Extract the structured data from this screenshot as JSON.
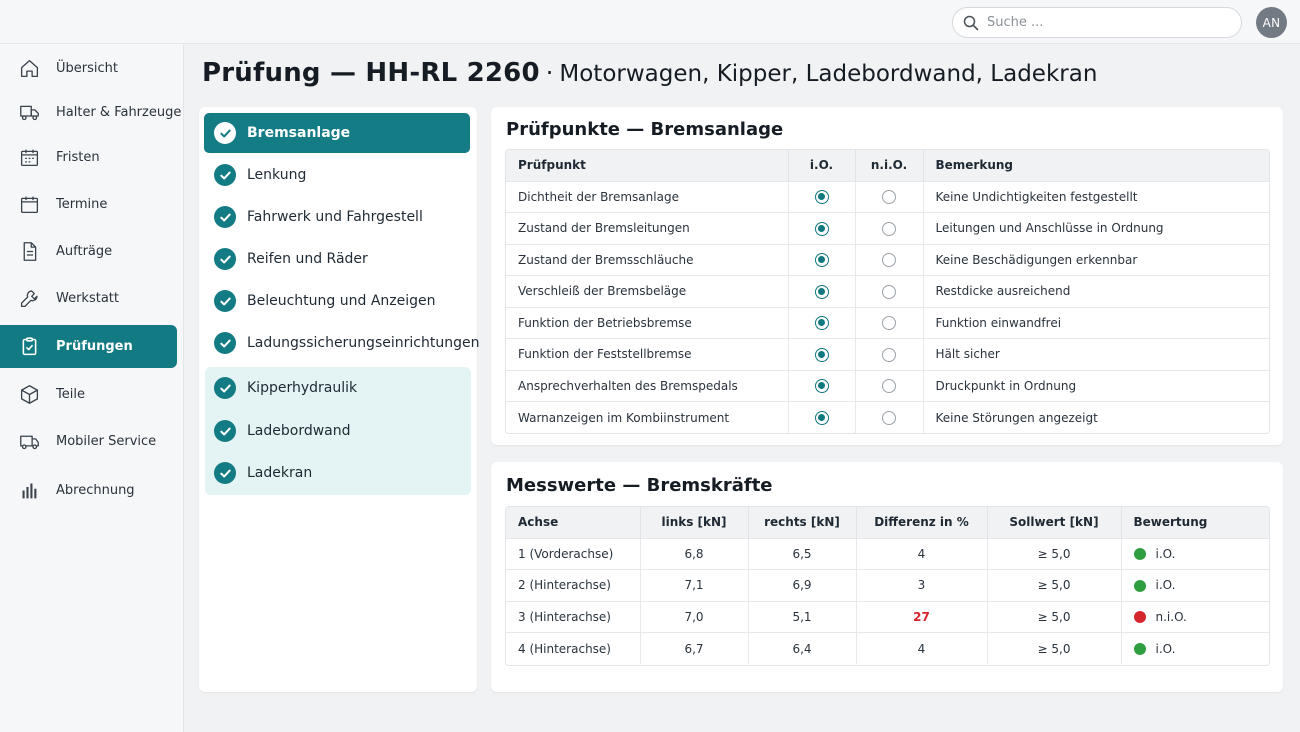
{
  "search": {
    "placeholder": "Suche ..."
  },
  "user": {
    "initials": "AN"
  },
  "sidebar": {
    "items": [
      {
        "label": "Übersicht",
        "icon": "home-icon"
      },
      {
        "label": "Halter & Fahrzeuge",
        "icon": "truck-icon"
      },
      {
        "label": "Fristen",
        "icon": "calendar-grid-icon"
      },
      {
        "label": "Termine",
        "icon": "calendar-icon"
      },
      {
        "label": "Aufträge",
        "icon": "document-icon"
      },
      {
        "label": "Werkstatt",
        "icon": "wrench-icon"
      },
      {
        "label": "Prüfungen",
        "icon": "clipboard-check-icon",
        "active": true
      },
      {
        "label": "Teile",
        "icon": "box-icon"
      },
      {
        "label": "Mobiler Service",
        "icon": "van-icon"
      },
      {
        "label": "Abrechnung",
        "icon": "bar-chart-icon"
      }
    ]
  },
  "page": {
    "title": "Prüfung — HH-RL 2260",
    "separator": "·",
    "subtitle": "Motorwagen, Kipper, Ladebordwand, Ladekran"
  },
  "categories": [
    {
      "label": "Bremsanlage",
      "active": true
    },
    {
      "label": "Lenkung"
    },
    {
      "label": "Fahrwerk und Fahrgestell"
    },
    {
      "label": "Reifen und Räder"
    },
    {
      "label": "Beleuchtung und Anzeigen"
    },
    {
      "label": "Ladungssicherungseinrichtungen"
    },
    {
      "label": "Kipperhydraulik"
    },
    {
      "label": "Ladebordwand"
    },
    {
      "label": "Ladekran"
    }
  ],
  "checks": {
    "title": "Prüfpunkte — Bremsanlage",
    "headers": [
      "Prüfpunkt",
      "i.O.",
      "n.i.O.",
      "Bemerkung"
    ],
    "rows": [
      {
        "item": "Dichtheit der Bremsanlage",
        "result": "i.O.",
        "note": "Keine Undichtigkeiten festgestellt"
      },
      {
        "item": "Zustand der Bremsleitungen",
        "result": "i.O.",
        "note": "Leitungen und Anschlüsse in Ordnung"
      },
      {
        "item": "Zustand der Bremsschläuche",
        "result": "i.O.",
        "note": "Keine Beschädigungen erkennbar"
      },
      {
        "item": "Verschleiß der Bremsbeläge",
        "result": "i.O.",
        "note": "Restdicke ausreichend"
      },
      {
        "item": "Funktion der Betriebsbremse",
        "result": "i.O.",
        "note": "Funktion einwandfrei"
      },
      {
        "item": "Funktion der Feststellbremse",
        "result": "i.O.",
        "note": "Hält sicher"
      },
      {
        "item": "Ansprechverhalten des Bremspedals",
        "result": "i.O.",
        "note": "Druckpunkt in Ordnung"
      },
      {
        "item": "Warnanzeigen im Kombiinstrument",
        "result": "i.O.",
        "note": "Keine Störungen angezeigt"
      }
    ]
  },
  "measurements": {
    "title": "Messwerte — Bremskräfte",
    "headers": [
      "Achse",
      "links [kN]",
      "rechts [kN]",
      "Differenz in %",
      "Sollwert [kN]",
      "Bewertung"
    ],
    "rows": [
      {
        "axle": "1 (Vorderachse)",
        "left": "6,8",
        "right": "6,5",
        "diff": "4",
        "target": "≥ 5,0",
        "rating": "i.O.",
        "status": "ok"
      },
      {
        "axle": "2 (Hinterachse)",
        "left": "7,1",
        "right": "6,9",
        "diff": "3",
        "target": "≥ 5,0",
        "rating": "i.O.",
        "status": "ok"
      },
      {
        "axle": "3 (Hinterachse)",
        "left": "7,0",
        "right": "5,1",
        "diff": "27",
        "target": "≥ 5,0",
        "rating": "n.i.O.",
        "status": "fail"
      },
      {
        "axle": "4 (Hinterachse)",
        "left": "6,7",
        "right": "6,4",
        "diff": "4",
        "target": "≥ 5,0",
        "rating": "i.O.",
        "status": "ok"
      }
    ]
  },
  "colors": {
    "accent": "#147c84",
    "ok": "#2e9e3e",
    "fail": "#d7262b"
  }
}
